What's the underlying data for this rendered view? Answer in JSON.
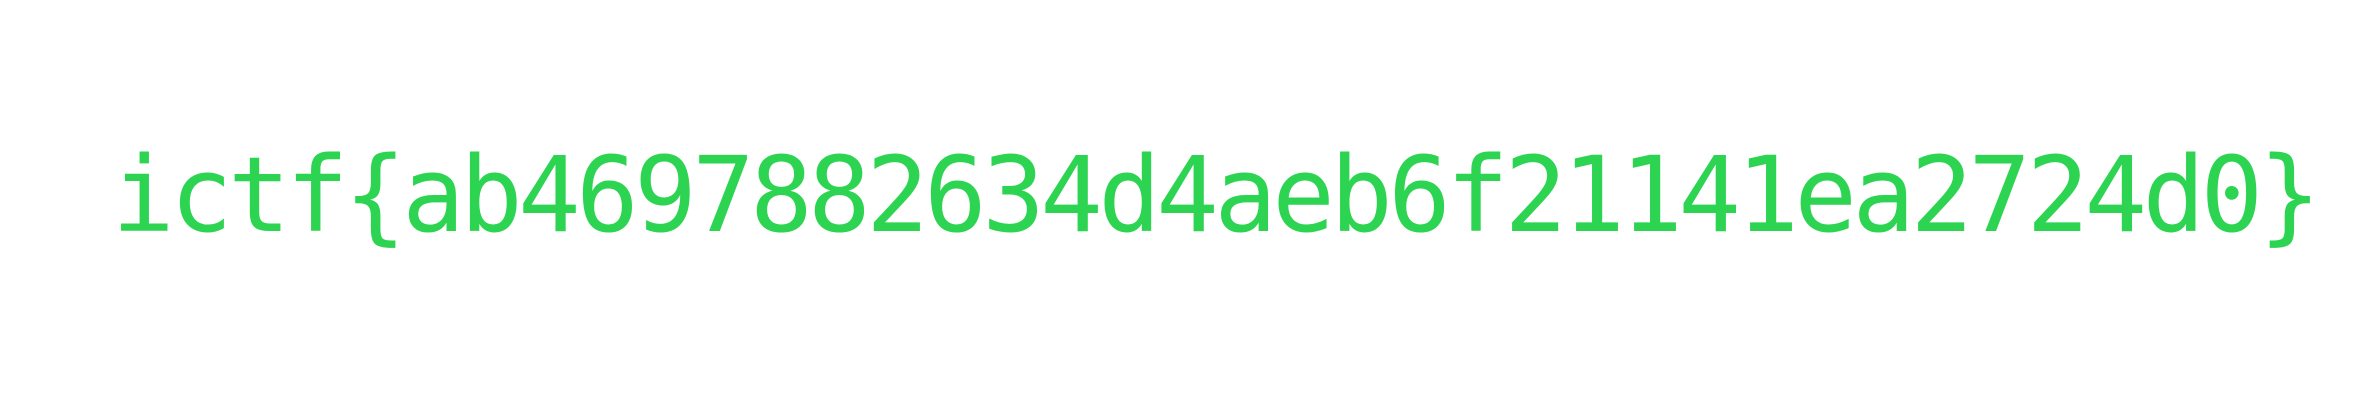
{
  "flag": {
    "text": "ictf{ab46978826 34d4aeb6f21141ea2724d0}",
    "color": "#2dd452"
  },
  "background": {
    "color": "#ffffff"
  }
}
